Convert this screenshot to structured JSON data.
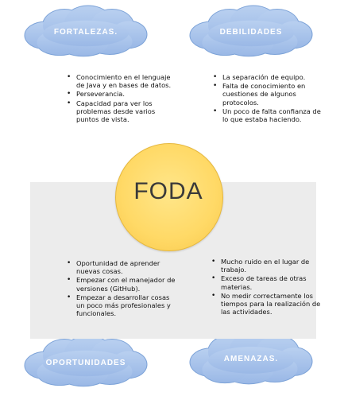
{
  "center": {
    "label": "FODA"
  },
  "colors": {
    "cloud_fill": "#a9c3ea",
    "cloud_stroke": "#7da3d8",
    "circle_fill": "#ffd966",
    "panel": "#ececec"
  },
  "quadrants": {
    "fortalezas": {
      "title": "FORTALEZAS.",
      "items": [
        "Conocimiento en el lenguaje de Java y en bases de datos.",
        "Perseverancia.",
        "Capacidad para ver los problemas desde varios puntos de vista."
      ]
    },
    "debilidades": {
      "title": "DEBILIDADES",
      "items": [
        "La separación de equipo.",
        "Falta de conocimiento en cuestiones de algunos protocolos.",
        "Un poco de falta confianza de lo que estaba haciendo."
      ]
    },
    "oportunidades": {
      "title": "OPORTUNIDADES",
      "items": [
        "Oportunidad de aprender nuevas cosas.",
        "Empezar con el manejador de versiones (GitHub).",
        "Empezar a desarrollar cosas un poco más profesionales y funcionales."
      ]
    },
    "amenazas": {
      "title": "AMENAZAS.",
      "items": [
        "Mucho ruido en el lugar de trabajo.",
        "Exceso de tareas de otras materias.",
        "No medir correctamente los tiempos para la realización de las actividades."
      ]
    }
  }
}
